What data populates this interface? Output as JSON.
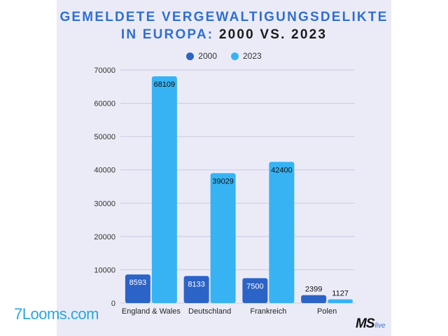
{
  "title": {
    "line1": "GEMELDETE VERGEWALTIGUNGSDELIKTE",
    "line2_a": "IN EUROPA:",
    "line2_b": "2000 VS. 2023"
  },
  "watermark": "7Looms.com",
  "logo": {
    "main": "MS",
    "sub": "live"
  },
  "colors": {
    "series2000": "#2c63c6",
    "series2023": "#37b3f3",
    "grid": "#c9c9de",
    "panel": "#ebebf8"
  },
  "chart_data": {
    "type": "bar",
    "title": "GEMELDETE VERGEWALTIGUNGSDELIKTE IN EUROPA: 2000 VS. 2023",
    "categories": [
      "England & Wales",
      "Deutschland",
      "Frankreich",
      "Polen"
    ],
    "series": [
      {
        "name": "2000",
        "values": [
          8593,
          8133,
          7500,
          2399
        ]
      },
      {
        "name": "2023",
        "values": [
          68109,
          39029,
          42400,
          1127
        ]
      }
    ],
    "ylim": [
      0,
      70000
    ],
    "yticks": [
      "0",
      "10000",
      "20000",
      "30000",
      "40000",
      "50000",
      "60000",
      "70000"
    ],
    "grid": true,
    "legend": "top-center"
  }
}
